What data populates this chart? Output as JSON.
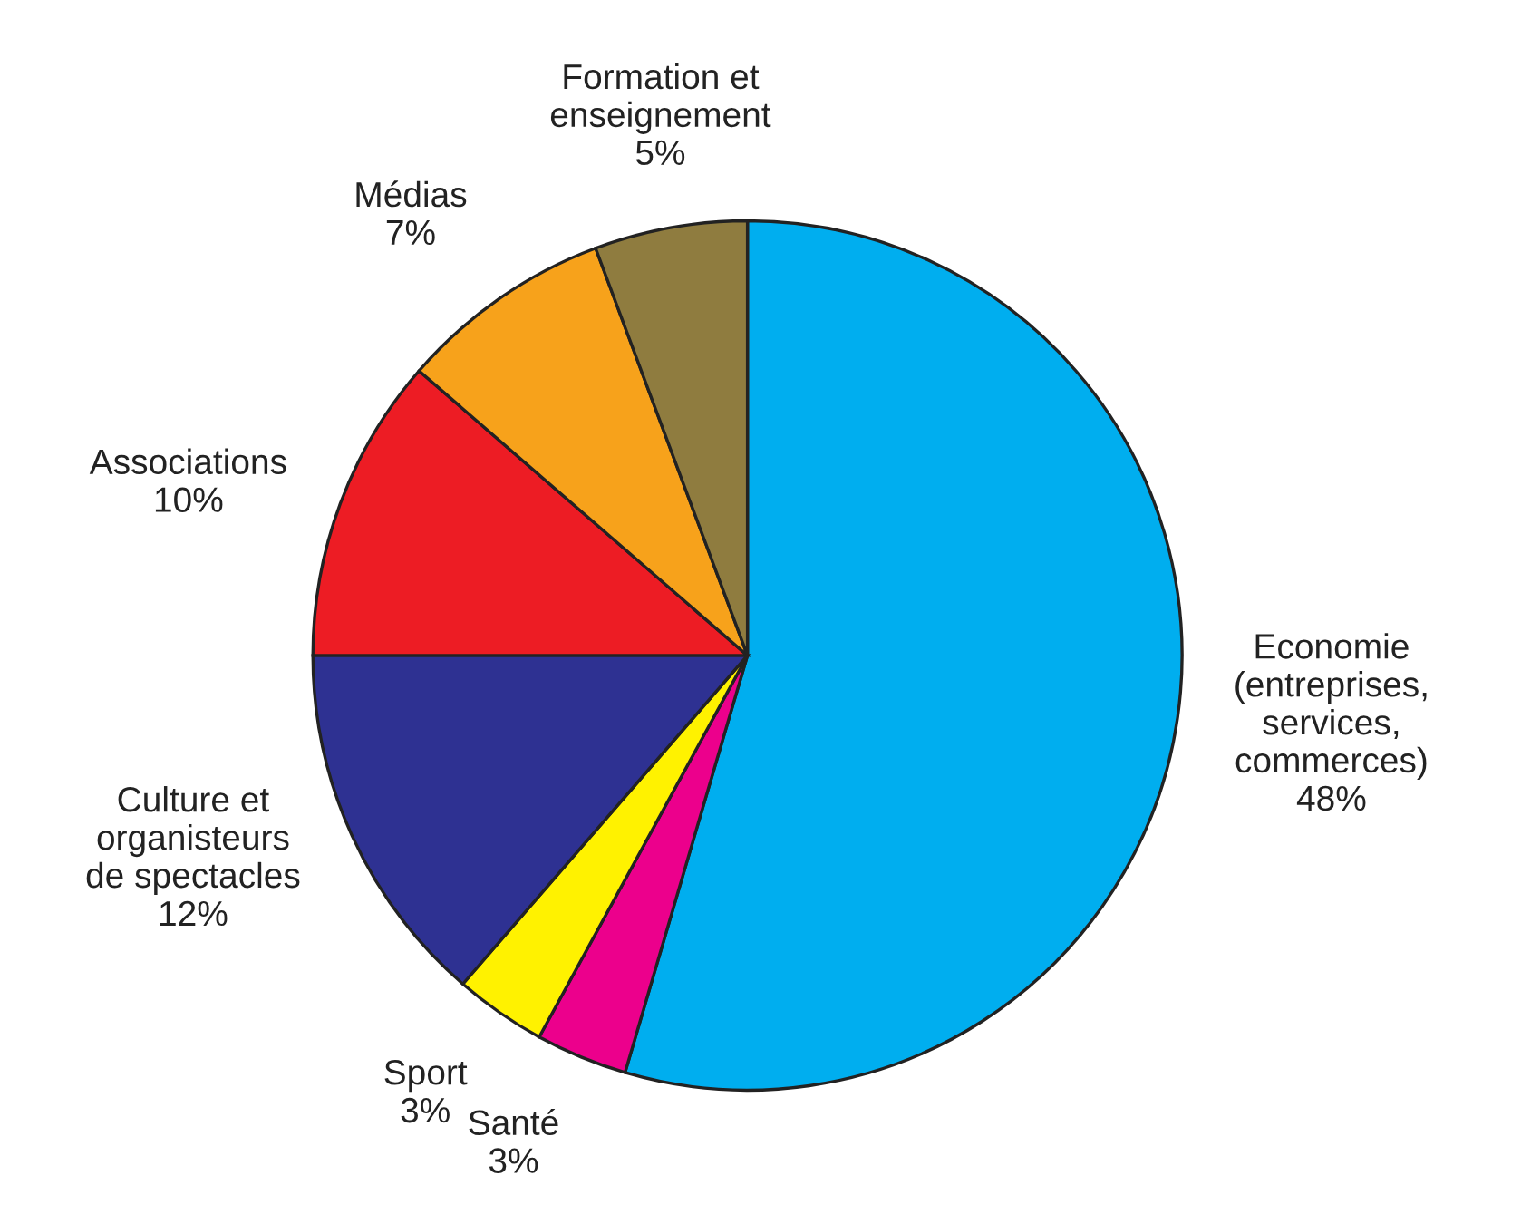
{
  "chart_data": {
    "type": "pie",
    "categories": [
      "Economie\n(entreprises,\nservices,\ncommerces)",
      "Santé",
      "Sport",
      "Culture et\norganisteurs\nde spectacles",
      "Associations",
      "Médias",
      "Formation et\nenseignement"
    ],
    "values": [
      48,
      3,
      3,
      12,
      10,
      7,
      5
    ],
    "value_labels": [
      "48%",
      "3%",
      "3%",
      "12%",
      "10%",
      "7%",
      "5%"
    ],
    "colors": [
      "#00aeef",
      "#ec008c",
      "#fff200",
      "#2e3192",
      "#ed1c24",
      "#f7a21b",
      "#8f7c3f"
    ]
  }
}
